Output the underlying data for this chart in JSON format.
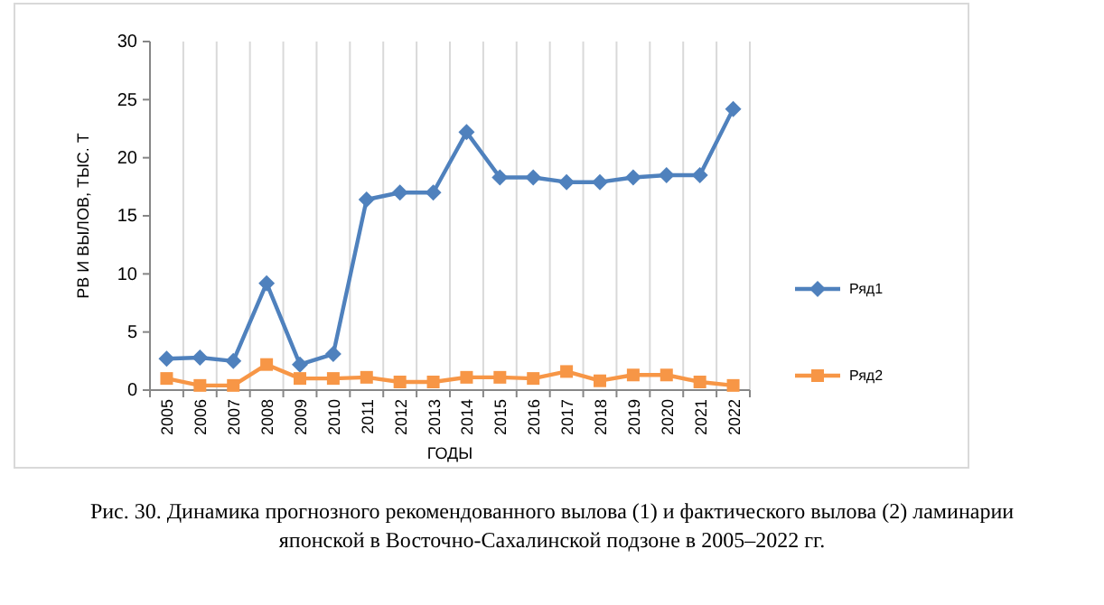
{
  "chart_data": {
    "type": "line",
    "xlabel": "ГОДЫ",
    "ylabel": "РВ И ВЫЛОВ, ТЫС. Т",
    "categories": [
      "2005",
      "2006",
      "2007",
      "2008",
      "2009",
      "2010",
      "2011",
      "2012",
      "2013",
      "2014",
      "2015",
      "2016",
      "2017",
      "2018",
      "2019",
      "2020",
      "2021",
      "2022"
    ],
    "series": [
      {
        "name": "Ряд1",
        "color": "#4f81bd",
        "marker": "diamond",
        "values": [
          2.7,
          2.8,
          2.5,
          9.2,
          2.2,
          3.1,
          16.4,
          17,
          17,
          22.2,
          18.3,
          18.3,
          17.9,
          17.9,
          18.3,
          18.5,
          18.5,
          24.2
        ]
      },
      {
        "name": "Ряд2",
        "color": "#f79646",
        "marker": "square",
        "values": [
          1.0,
          0.4,
          0.4,
          2.2,
          1.0,
          1.0,
          1.1,
          0.7,
          0.7,
          1.1,
          1.1,
          1.0,
          1.6,
          0.8,
          1.3,
          1.3,
          0.7,
          0.4
        ]
      }
    ],
    "ylim": [
      0,
      30
    ],
    "yticks": [
      0,
      5,
      10,
      15,
      20,
      25,
      30
    ],
    "grid": "x",
    "legend": "right",
    "annotations": [
      "Рис. 30. Динамика прогнозного рекомендованного вылова (1) и фактического вылова (2) ламинарии японской в Восточно-Сахалинской подзоне в 2005–2022 гг."
    ]
  }
}
